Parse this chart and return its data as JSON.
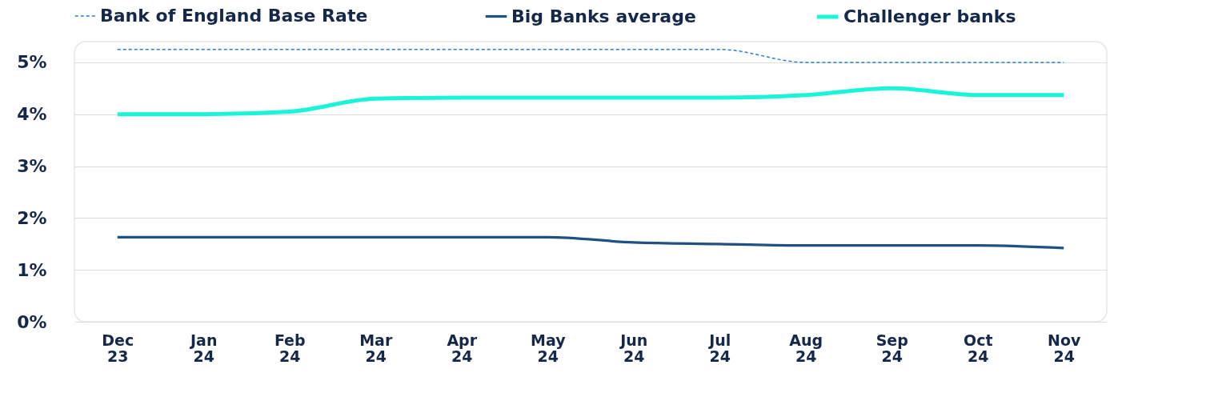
{
  "chart_data": {
    "type": "line",
    "categories": [
      "Dec 23",
      "Jan 24",
      "Feb 24",
      "Mar 24",
      "Apr 24",
      "May 24",
      "Jun 24",
      "Jul 24",
      "Aug 24",
      "Sep 24",
      "Oct 24",
      "Nov 24"
    ],
    "series": [
      {
        "name": "Bank of England Base Rate",
        "color": "#2b7bd0",
        "line_style": "dashed",
        "values": [
          5.25,
          5.25,
          5.25,
          5.25,
          5.25,
          5.25,
          5.25,
          5.25,
          5.0,
          5.0,
          5.0,
          5.0
        ]
      },
      {
        "name": "Big Banks average",
        "color": "#1f5283",
        "line_style": "solid",
        "values": [
          1.63,
          1.63,
          1.63,
          1.63,
          1.63,
          1.63,
          1.53,
          1.5,
          1.47,
          1.47,
          1.47,
          1.42
        ]
      },
      {
        "name": "Challenger banks",
        "color": "#19f5d8",
        "line_style": "solid",
        "values": [
          4.0,
          4.0,
          4.05,
          4.3,
          4.32,
          4.32,
          4.32,
          4.32,
          4.37,
          4.5,
          4.37,
          4.37
        ]
      }
    ],
    "ylim": [
      0,
      5.4
    ],
    "yticks": [
      {
        "value": 0,
        "label": "0%"
      },
      {
        "value": 1,
        "label": "1%"
      },
      {
        "value": 2,
        "label": "2%"
      },
      {
        "value": 3,
        "label": "3%"
      },
      {
        "value": 4,
        "label": "4%"
      },
      {
        "value": 5,
        "label": "5%"
      }
    ],
    "grid": "y",
    "legend": "top",
    "marker": "none"
  }
}
